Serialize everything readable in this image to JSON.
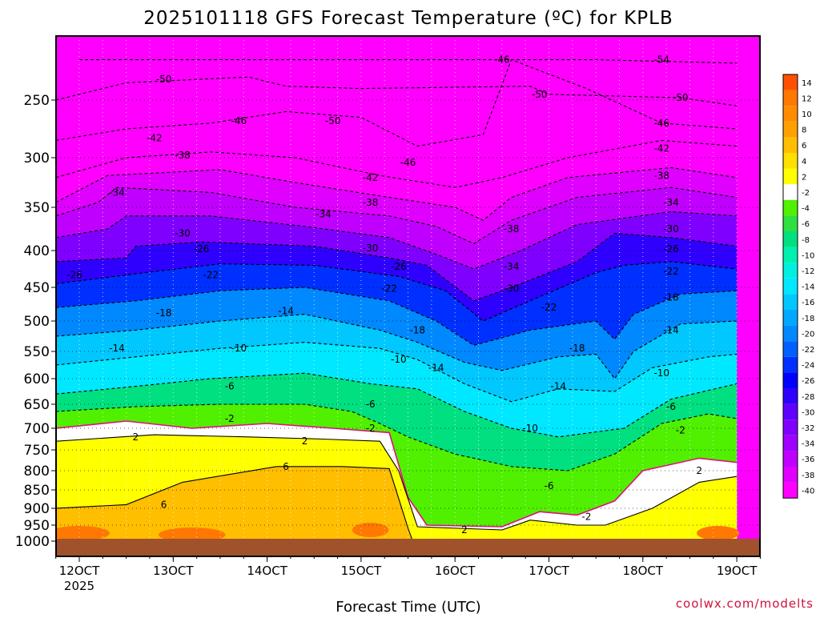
{
  "title": "2025101118 GFS Forecast Temperature (ºC) for KPLB",
  "credit": "coolwx.com/modelts",
  "chart_data": {
    "type": "heatmap",
    "title": "2025101118 GFS Forecast Temperature (ºC) for KPLB",
    "xlabel": "Forecast Time (UTC)",
    "ylabel": "",
    "x_unit": "days (Oct 2025)",
    "xlim": [
      11.75,
      19.25
    ],
    "ylim_hPa": [
      1000,
      200
    ],
    "y_scale": "pressure (log-like)",
    "x_ticks": [
      {
        "value": 12,
        "label": "12OCT"
      },
      {
        "value": 13,
        "label": "13OCT"
      },
      {
        "value": 14,
        "label": "14OCT"
      },
      {
        "value": 15,
        "label": "15OCT"
      },
      {
        "value": 16,
        "label": "16OCT"
      },
      {
        "value": 17,
        "label": "17OCT"
      },
      {
        "value": 18,
        "label": "18OCT"
      },
      {
        "value": 19,
        "label": "19OCT"
      }
    ],
    "x_year_label": "2025",
    "y_ticks": [
      250,
      300,
      350,
      400,
      450,
      500,
      550,
      600,
      650,
      700,
      750,
      800,
      850,
      900,
      950,
      1000
    ],
    "grid": true,
    "colorbar": {
      "placement": "right",
      "levels": [
        14,
        12,
        10,
        8,
        6,
        4,
        2,
        -2,
        -4,
        -6,
        -8,
        -10,
        -12,
        -14,
        -16,
        -18,
        -20,
        -22,
        -24,
        -26,
        -28,
        -30,
        -32,
        -34,
        -36,
        -38,
        -40
      ],
      "colors": [
        "#ff5000",
        "#ff7800",
        "#ff8c00",
        "#ffa000",
        "#ffbe00",
        "#ffe000",
        "#ffff00",
        "#ffffff",
        "#50f000",
        "#30e040",
        "#00e080",
        "#00f0b0",
        "#00f0e0",
        "#00e8ff",
        "#00c8ff",
        "#00a8ff",
        "#0088ff",
        "#0060ff",
        "#0030ff",
        "#0000ff",
        "#3000ff",
        "#6000ff",
        "#8000ff",
        "#a000ff",
        "#c000ff",
        "#e000ff",
        "#ff00ff"
      ]
    },
    "series": [
      {
        "level": -54,
        "points": [
          [
            12,
            215
          ],
          [
            14,
            215
          ],
          [
            17.5,
            215
          ],
          [
            19,
            218
          ]
        ]
      },
      {
        "level": -50,
        "points": [
          [
            11.75,
            250
          ],
          [
            12.5,
            235
          ],
          [
            13.8,
            230
          ],
          [
            14.2,
            238
          ],
          [
            15,
            240
          ],
          [
            16.8,
            238
          ],
          [
            17,
            245
          ],
          [
            18.4,
            248
          ],
          [
            19,
            255
          ]
        ]
      },
      {
        "level": -46,
        "points": [
          [
            11.75,
            285
          ],
          [
            12.5,
            275
          ],
          [
            13.4,
            270
          ],
          [
            14.2,
            260
          ],
          [
            15,
            265
          ],
          [
            15.6,
            290
          ],
          [
            16.3,
            280
          ],
          [
            16.6,
            215
          ],
          [
            17.4,
            240
          ],
          [
            18.2,
            270
          ],
          [
            19,
            275
          ]
        ]
      },
      {
        "level": -42,
        "points": [
          [
            11.75,
            320
          ],
          [
            12.5,
            300
          ],
          [
            13.4,
            295
          ],
          [
            14.3,
            300
          ],
          [
            15.2,
            318
          ],
          [
            16,
            330
          ],
          [
            16.5,
            320
          ],
          [
            17.2,
            300
          ],
          [
            18.2,
            285
          ],
          [
            19,
            290
          ]
        ]
      },
      {
        "level": -38,
        "points": [
          [
            11.75,
            345
          ],
          [
            12.3,
            318
          ],
          [
            13.5,
            312
          ],
          [
            14.3,
            325
          ],
          [
            15.3,
            340
          ],
          [
            16,
            350
          ],
          [
            16.3,
            365
          ],
          [
            16.6,
            340
          ],
          [
            17.2,
            320
          ],
          [
            18.3,
            310
          ],
          [
            19,
            320
          ]
        ]
      },
      {
        "level": -34,
        "points": [
          [
            11.75,
            360
          ],
          [
            12.2,
            345
          ],
          [
            12.4,
            330
          ],
          [
            13.4,
            335
          ],
          [
            14.3,
            350
          ],
          [
            15.3,
            360
          ],
          [
            15.8,
            372
          ],
          [
            16.2,
            392
          ],
          [
            16.6,
            365
          ],
          [
            17.3,
            340
          ],
          [
            18.3,
            330
          ],
          [
            19,
            340
          ]
        ]
      },
      {
        "level": -30,
        "points": [
          [
            11.75,
            385
          ],
          [
            12.3,
            375
          ],
          [
            12.5,
            360
          ],
          [
            13.4,
            360
          ],
          [
            14.4,
            372
          ],
          [
            15.3,
            385
          ],
          [
            15.8,
            405
          ],
          [
            16.2,
            425
          ],
          [
            16.7,
            400
          ],
          [
            17.3,
            370
          ],
          [
            18.3,
            355
          ],
          [
            19,
            360
          ]
        ]
      },
      {
        "level": -26,
        "points": [
          [
            11.75,
            415
          ],
          [
            12.5,
            410
          ],
          [
            12.6,
            395
          ],
          [
            13.3,
            390
          ],
          [
            14.5,
            395
          ],
          [
            15.3,
            410
          ],
          [
            15.7,
            420
          ],
          [
            16.2,
            470
          ],
          [
            16.6,
            450
          ],
          [
            17.3,
            415
          ],
          [
            17.7,
            380
          ],
          [
            18.3,
            385
          ],
          [
            19,
            395
          ]
        ]
      },
      {
        "level": -22,
        "points": [
          [
            11.75,
            445
          ],
          [
            12.7,
            430
          ],
          [
            13.5,
            418
          ],
          [
            14.5,
            420
          ],
          [
            15.4,
            435
          ],
          [
            15.9,
            455
          ],
          [
            16.3,
            500
          ],
          [
            16.8,
            470
          ],
          [
            17.5,
            430
          ],
          [
            17.8,
            420
          ],
          [
            18.3,
            415
          ],
          [
            19,
            425
          ]
        ]
      },
      {
        "level": -18,
        "points": [
          [
            11.75,
            480
          ],
          [
            12.6,
            470
          ],
          [
            13.5,
            455
          ],
          [
            14.4,
            450
          ],
          [
            15.3,
            470
          ],
          [
            15.8,
            500
          ],
          [
            16.2,
            540
          ],
          [
            16.8,
            515
          ],
          [
            17.5,
            500
          ],
          [
            17.7,
            530
          ],
          [
            17.9,
            490
          ],
          [
            18.4,
            460
          ],
          [
            19,
            455
          ]
        ]
      },
      {
        "level": -14,
        "points": [
          [
            11.75,
            525
          ],
          [
            12.6,
            515
          ],
          [
            13.5,
            500
          ],
          [
            14.4,
            490
          ],
          [
            15.2,
            515
          ],
          [
            15.6,
            535
          ],
          [
            16.1,
            570
          ],
          [
            16.5,
            585
          ],
          [
            17.1,
            560
          ],
          [
            17.5,
            555
          ],
          [
            17.7,
            600
          ],
          [
            17.9,
            550
          ],
          [
            18.4,
            505
          ],
          [
            19,
            500
          ]
        ]
      },
      {
        "level": -10,
        "points": [
          [
            11.75,
            575
          ],
          [
            12.6,
            560
          ],
          [
            13.5,
            545
          ],
          [
            14.4,
            535
          ],
          [
            15.2,
            545
          ],
          [
            15.6,
            565
          ],
          [
            16.1,
            610
          ],
          [
            16.6,
            645
          ],
          [
            17.1,
            620
          ],
          [
            17.7,
            625
          ],
          [
            18.1,
            580
          ],
          [
            18.7,
            560
          ],
          [
            19,
            555
          ]
        ]
      },
      {
        "level": -6,
        "points": [
          [
            11.75,
            630
          ],
          [
            12.6,
            615
          ],
          [
            13.4,
            600
          ],
          [
            14.4,
            590
          ],
          [
            15.1,
            610
          ],
          [
            15.6,
            620
          ],
          [
            16.1,
            665
          ],
          [
            16.6,
            700
          ],
          [
            17.1,
            720
          ],
          [
            17.8,
            700
          ],
          [
            18.3,
            640
          ],
          [
            19,
            610
          ]
        ]
      },
      {
        "level": -2,
        "points": [
          [
            11.75,
            665
          ],
          [
            12.6,
            655
          ],
          [
            13.5,
            650
          ],
          [
            14.4,
            650
          ],
          [
            14.9,
            665
          ],
          [
            15.2,
            690
          ],
          [
            15.5,
            720
          ],
          [
            16,
            760
          ],
          [
            16.6,
            790
          ],
          [
            17.2,
            800
          ],
          [
            17.7,
            760
          ],
          [
            18.2,
            690
          ],
          [
            18.7,
            670
          ],
          [
            19,
            680
          ]
        ]
      },
      {
        "level": 0,
        "points": [
          [
            11.75,
            700
          ],
          [
            12.5,
            685
          ],
          [
            13.2,
            700
          ],
          [
            14,
            690
          ],
          [
            14.7,
            700
          ],
          [
            15.3,
            710
          ],
          [
            15.5,
            870
          ],
          [
            15.7,
            950
          ],
          [
            16.5,
            955
          ],
          [
            16.9,
            910
          ],
          [
            17.3,
            920
          ],
          [
            17.7,
            880
          ],
          [
            18,
            800
          ],
          [
            18.6,
            770
          ],
          [
            19,
            780
          ]
        ]
      },
      {
        "level": 2,
        "points": [
          [
            11.75,
            730
          ],
          [
            12.8,
            715
          ],
          [
            13.8,
            720
          ],
          [
            14.6,
            725
          ],
          [
            15.2,
            730
          ],
          [
            15.4,
            800
          ],
          [
            15.6,
            955
          ],
          [
            16.5,
            965
          ],
          [
            16.8,
            935
          ],
          [
            17.3,
            950
          ],
          [
            17.6,
            950
          ],
          [
            18.1,
            900
          ],
          [
            18.6,
            830
          ],
          [
            19,
            815
          ]
        ]
      },
      {
        "level": 6,
        "points": [
          [
            11.75,
            900
          ],
          [
            12.5,
            890
          ],
          [
            13.1,
            830
          ],
          [
            14.1,
            790
          ],
          [
            14.8,
            790
          ],
          [
            15.3,
            795
          ],
          [
            15.5,
            960
          ],
          [
            15.55,
            1000
          ]
        ]
      }
    ],
    "contour_labels": [
      {
        "x": 12.9,
        "p": 232,
        "text": "-50"
      },
      {
        "x": 13.7,
        "p": 268,
        "text": "-46"
      },
      {
        "x": 14.7,
        "p": 268,
        "text": "-50"
      },
      {
        "x": 16.5,
        "p": 215,
        "text": "-46"
      },
      {
        "x": 16.9,
        "p": 245,
        "text": "-50"
      },
      {
        "x": 18.2,
        "p": 215,
        "text": "-54"
      },
      {
        "x": 18.4,
        "p": 248,
        "text": "-50"
      },
      {
        "x": 18.2,
        "p": 270,
        "text": "-46"
      },
      {
        "x": 12.8,
        "p": 283,
        "text": "-42"
      },
      {
        "x": 13.1,
        "p": 298,
        "text": "-38"
      },
      {
        "x": 12.4,
        "p": 335,
        "text": "-34"
      },
      {
        "x": 15.1,
        "p": 320,
        "text": "-42"
      },
      {
        "x": 15.5,
        "p": 305,
        "text": "-46"
      },
      {
        "x": 15.1,
        "p": 345,
        "text": "-38"
      },
      {
        "x": 18.2,
        "p": 292,
        "text": "-42"
      },
      {
        "x": 18.2,
        "p": 318,
        "text": "-38"
      },
      {
        "x": 18.3,
        "p": 345,
        "text": "-34"
      },
      {
        "x": 14.6,
        "p": 358,
        "text": "-34"
      },
      {
        "x": 16.6,
        "p": 375,
        "text": "-38"
      },
      {
        "x": 13.1,
        "p": 380,
        "text": "-30"
      },
      {
        "x": 18.3,
        "p": 375,
        "text": "-30"
      },
      {
        "x": 13.3,
        "p": 398,
        "text": "-26"
      },
      {
        "x": 15.1,
        "p": 397,
        "text": "-30"
      },
      {
        "x": 18.3,
        "p": 398,
        "text": "-26"
      },
      {
        "x": 11.95,
        "p": 433,
        "text": "-26"
      },
      {
        "x": 13.4,
        "p": 433,
        "text": "-22"
      },
      {
        "x": 15.4,
        "p": 422,
        "text": "-26"
      },
      {
        "x": 16.6,
        "p": 422,
        "text": "-34"
      },
      {
        "x": 18.3,
        "p": 428,
        "text": "-22"
      },
      {
        "x": 15.3,
        "p": 452,
        "text": "-22"
      },
      {
        "x": 16.6,
        "p": 452,
        "text": "-30"
      },
      {
        "x": 18.3,
        "p": 465,
        "text": "-18"
      },
      {
        "x": 12.9,
        "p": 488,
        "text": "-18"
      },
      {
        "x": 14.2,
        "p": 485,
        "text": "-14"
      },
      {
        "x": 17,
        "p": 480,
        "text": "-22"
      },
      {
        "x": 15.6,
        "p": 515,
        "text": "-18"
      },
      {
        "x": 18.3,
        "p": 515,
        "text": "-14"
      },
      {
        "x": 12.4,
        "p": 545,
        "text": "-14"
      },
      {
        "x": 13.7,
        "p": 545,
        "text": "-10"
      },
      {
        "x": 17.3,
        "p": 545,
        "text": "-18"
      },
      {
        "x": 15.4,
        "p": 565,
        "text": "-10"
      },
      {
        "x": 15.8,
        "p": 580,
        "text": "-14"
      },
      {
        "x": 18.2,
        "p": 590,
        "text": "-10"
      },
      {
        "x": 13.6,
        "p": 615,
        "text": "-6"
      },
      {
        "x": 17.1,
        "p": 615,
        "text": "-14"
      },
      {
        "x": 15.1,
        "p": 650,
        "text": "-6"
      },
      {
        "x": 18.3,
        "p": 655,
        "text": "-6"
      },
      {
        "x": 13.6,
        "p": 680,
        "text": "-2"
      },
      {
        "x": 15.1,
        "p": 700,
        "text": "-2"
      },
      {
        "x": 16.8,
        "p": 700,
        "text": "-10"
      },
      {
        "x": 18.4,
        "p": 705,
        "text": "-2"
      },
      {
        "x": 12.6,
        "p": 720,
        "text": "2"
      },
      {
        "x": 14.4,
        "p": 730,
        "text": "2"
      },
      {
        "x": 14.2,
        "p": 790,
        "text": "6"
      },
      {
        "x": 18.6,
        "p": 800,
        "text": "2"
      },
      {
        "x": 17,
        "p": 840,
        "text": "-6"
      },
      {
        "x": 12.9,
        "p": 890,
        "text": "6"
      },
      {
        "x": 17.4,
        "p": 925,
        "text": "-2"
      },
      {
        "x": 16.1,
        "p": 965,
        "text": "2"
      }
    ]
  }
}
